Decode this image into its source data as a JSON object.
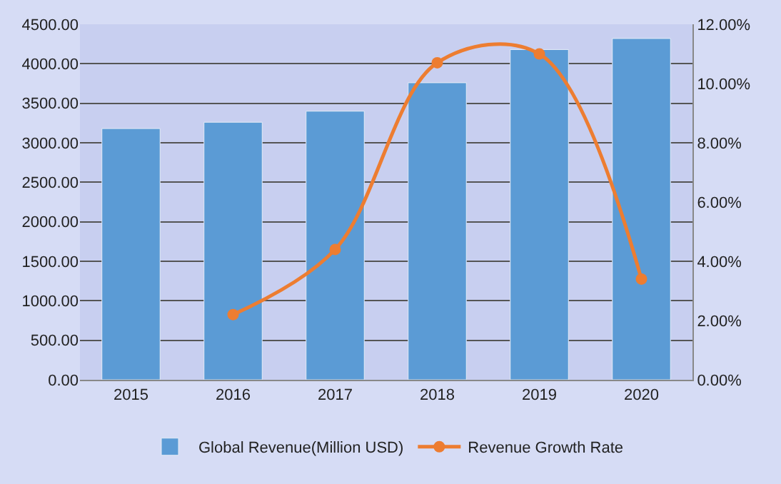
{
  "chart_data": {
    "type": "bar",
    "categories": [
      "2015",
      "2016",
      "2017",
      "2018",
      "2019",
      "2020"
    ],
    "series": [
      {
        "name": "Global Revenue(Million USD)",
        "color": "#5b9bd5",
        "values": [
          3180,
          3260,
          3400,
          3760,
          4180,
          4320
        ]
      },
      {
        "name": "Revenue Growth Rate",
        "type": "line",
        "axis": "y2",
        "color": "#ed7d31",
        "marker": "circle",
        "values": [
          null,
          2.2,
          4.4,
          10.7,
          11.0,
          3.4
        ]
      }
    ],
    "ylim": [
      0,
      4500
    ],
    "yticks": [
      {
        "value": 0,
        "label": "0.00"
      },
      {
        "value": 500,
        "label": "500.00"
      },
      {
        "value": 1000,
        "label": "1000.00"
      },
      {
        "value": 1500,
        "label": "1500.00"
      },
      {
        "value": 2000,
        "label": "2000.00"
      },
      {
        "value": 2500,
        "label": "2500.00"
      },
      {
        "value": 3000,
        "label": "3000.00"
      },
      {
        "value": 3500,
        "label": "3500.00"
      },
      {
        "value": 4000,
        "label": "4000.00"
      },
      {
        "value": 4500,
        "label": "4500.00"
      }
    ],
    "y2lim": [
      0,
      12
    ],
    "y2ticks": [
      {
        "value": 0,
        "label": "0.00%"
      },
      {
        "value": 2,
        "label": "2.00%"
      },
      {
        "value": 4,
        "label": "4.00%"
      },
      {
        "value": 6,
        "label": "6.00%"
      },
      {
        "value": 8,
        "label": "8.00%"
      },
      {
        "value": 10,
        "label": "10.00%"
      },
      {
        "value": 12,
        "label": "12.00%"
      }
    ],
    "grid": "y",
    "legend": "bottom"
  }
}
